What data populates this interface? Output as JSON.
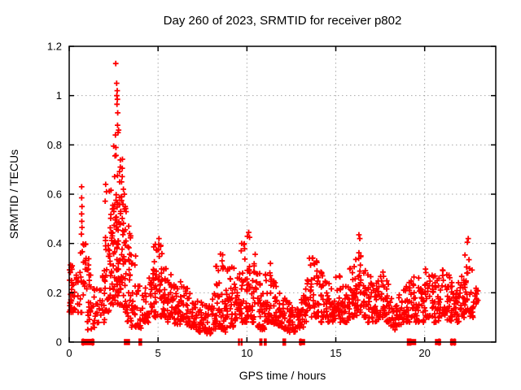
{
  "page": {
    "background": "#ffffff"
  },
  "chart_data": {
    "type": "scatter",
    "title": "Day 260 of 2023, SRMTID for receiver p802",
    "xlabel": "GPS time / hours",
    "ylabel": "SRMTID / TECUs",
    "xlim": [
      0,
      24
    ],
    "ylim": [
      0,
      1.2
    ],
    "xticks": [
      0,
      5,
      10,
      15,
      20
    ],
    "xtick_labels": [
      "0",
      "5",
      "10",
      "15",
      "20"
    ],
    "yticks": [
      0,
      0.2,
      0.4,
      0.6,
      0.8,
      1,
      1.2
    ],
    "ytick_labels": [
      "0",
      "0.2",
      "0.4",
      "0.6",
      "0.8",
      "1",
      "1.2"
    ],
    "grid": true,
    "legend_position": "none",
    "marker": "plus",
    "marker_color": "#ff0000",
    "grid_color": "#a8a8a8",
    "axis_color": "#000000",
    "series_name": "SRMTID",
    "random_seed": 7,
    "point_bins": [
      [
        0.0,
        26,
        0.12,
        0.32
      ],
      [
        0.25,
        12,
        0.13,
        0.28
      ],
      [
        0.5,
        12,
        0.12,
        0.45
      ],
      [
        0.75,
        16,
        0.13,
        0.4
      ],
      [
        1.0,
        24,
        0.05,
        0.35
      ],
      [
        1.25,
        10,
        0.05,
        0.22
      ],
      [
        1.5,
        10,
        0.06,
        0.22
      ],
      [
        1.75,
        14,
        0.08,
        0.3
      ],
      [
        2.0,
        22,
        0.12,
        0.58
      ],
      [
        2.25,
        32,
        0.15,
        0.66
      ],
      [
        2.5,
        46,
        0.15,
        0.82
      ],
      [
        2.75,
        42,
        0.15,
        0.78
      ],
      [
        3.0,
        30,
        0.12,
        0.58
      ],
      [
        3.25,
        24,
        0.08,
        0.45
      ],
      [
        3.5,
        18,
        0.06,
        0.35
      ],
      [
        3.75,
        14,
        0.06,
        0.24
      ],
      [
        4.0,
        12,
        0.05,
        0.2
      ],
      [
        4.25,
        14,
        0.08,
        0.24
      ],
      [
        4.5,
        18,
        0.1,
        0.32
      ],
      [
        4.75,
        22,
        0.1,
        0.4
      ],
      [
        5.0,
        22,
        0.1,
        0.4
      ],
      [
        5.25,
        20,
        0.1,
        0.34
      ],
      [
        5.5,
        22,
        0.08,
        0.3
      ],
      [
        5.75,
        18,
        0.07,
        0.25
      ],
      [
        6.0,
        16,
        0.07,
        0.22
      ],
      [
        6.25,
        18,
        0.08,
        0.26
      ],
      [
        6.5,
        16,
        0.07,
        0.24
      ],
      [
        6.75,
        14,
        0.06,
        0.2
      ],
      [
        7.0,
        16,
        0.05,
        0.18
      ],
      [
        7.25,
        18,
        0.04,
        0.18
      ],
      [
        7.5,
        18,
        0.04,
        0.16
      ],
      [
        7.75,
        16,
        0.03,
        0.15
      ],
      [
        8.0,
        18,
        0.05,
        0.2
      ],
      [
        8.25,
        22,
        0.06,
        0.34
      ],
      [
        8.5,
        22,
        0.05,
        0.36
      ],
      [
        8.75,
        20,
        0.04,
        0.3
      ],
      [
        9.0,
        20,
        0.05,
        0.32
      ],
      [
        9.25,
        18,
        0.08,
        0.3
      ],
      [
        9.5,
        20,
        0.08,
        0.38
      ],
      [
        9.75,
        20,
        0.08,
        0.4
      ],
      [
        10.0,
        22,
        0.1,
        0.44
      ],
      [
        10.25,
        22,
        0.08,
        0.4
      ],
      [
        10.5,
        18,
        0.06,
        0.28
      ],
      [
        10.75,
        16,
        0.05,
        0.22
      ],
      [
        11.0,
        20,
        0.08,
        0.3
      ],
      [
        11.25,
        20,
        0.08,
        0.32
      ],
      [
        11.5,
        18,
        0.07,
        0.25
      ],
      [
        11.75,
        18,
        0.06,
        0.22
      ],
      [
        12.0,
        16,
        0.05,
        0.18
      ],
      [
        12.25,
        16,
        0.04,
        0.16
      ],
      [
        12.5,
        14,
        0.04,
        0.15
      ],
      [
        12.75,
        14,
        0.05,
        0.16
      ],
      [
        13.0,
        14,
        0.06,
        0.2
      ],
      [
        13.25,
        16,
        0.08,
        0.3
      ],
      [
        13.5,
        18,
        0.1,
        0.36
      ],
      [
        13.75,
        18,
        0.1,
        0.33
      ],
      [
        14.0,
        18,
        0.08,
        0.3
      ],
      [
        14.25,
        18,
        0.1,
        0.28
      ],
      [
        14.5,
        16,
        0.08,
        0.25
      ],
      [
        14.75,
        16,
        0.08,
        0.26
      ],
      [
        15.0,
        18,
        0.1,
        0.28
      ],
      [
        15.25,
        16,
        0.08,
        0.25
      ],
      [
        15.5,
        16,
        0.08,
        0.24
      ],
      [
        15.75,
        18,
        0.1,
        0.3
      ],
      [
        16.0,
        20,
        0.1,
        0.34
      ],
      [
        16.25,
        22,
        0.12,
        0.43
      ],
      [
        16.5,
        18,
        0.1,
        0.33
      ],
      [
        16.75,
        16,
        0.08,
        0.28
      ],
      [
        17.0,
        18,
        0.08,
        0.3
      ],
      [
        17.25,
        18,
        0.08,
        0.28
      ],
      [
        17.5,
        18,
        0.1,
        0.3
      ],
      [
        17.75,
        16,
        0.08,
        0.25
      ],
      [
        18.0,
        14,
        0.06,
        0.2
      ],
      [
        18.25,
        14,
        0.05,
        0.18
      ],
      [
        18.5,
        14,
        0.06,
        0.2
      ],
      [
        18.75,
        16,
        0.08,
        0.24
      ],
      [
        19.0,
        16,
        0.08,
        0.26
      ],
      [
        19.25,
        18,
        0.1,
        0.3
      ],
      [
        19.5,
        16,
        0.08,
        0.28
      ],
      [
        19.75,
        16,
        0.08,
        0.25
      ],
      [
        20.0,
        18,
        0.1,
        0.3
      ],
      [
        20.25,
        18,
        0.1,
        0.3
      ],
      [
        20.5,
        16,
        0.08,
        0.28
      ],
      [
        20.75,
        16,
        0.08,
        0.26
      ],
      [
        21.0,
        18,
        0.1,
        0.3
      ],
      [
        21.25,
        18,
        0.08,
        0.28
      ],
      [
        21.5,
        16,
        0.1,
        0.26
      ],
      [
        21.75,
        16,
        0.08,
        0.25
      ],
      [
        22.0,
        18,
        0.1,
        0.28
      ],
      [
        22.25,
        22,
        0.12,
        0.4
      ],
      [
        22.5,
        18,
        0.1,
        0.3
      ],
      [
        22.75,
        12,
        0.1,
        0.22
      ]
    ],
    "outlier_points": [
      [
        0.7,
        0.63
      ],
      [
        0.7,
        0.585
      ],
      [
        0.72,
        0.55
      ],
      [
        0.7,
        0.52
      ],
      [
        0.71,
        0.49
      ],
      [
        0.72,
        0.465
      ],
      [
        2.05,
        0.64
      ],
      [
        2.1,
        0.61
      ],
      [
        2.62,
        1.13
      ],
      [
        2.67,
        1.05
      ],
      [
        2.7,
        1.02
      ],
      [
        2.68,
        1.0
      ],
      [
        2.71,
        0.985
      ],
      [
        2.69,
        0.965
      ],
      [
        2.73,
        0.93
      ],
      [
        2.72,
        0.88
      ],
      [
        2.78,
        0.86
      ],
      [
        2.75,
        0.85
      ],
      [
        2.6,
        0.84
      ],
      [
        3.05,
        0.62
      ],
      [
        3.1,
        0.6
      ],
      [
        3.15,
        0.55
      ],
      [
        3.35,
        0.47
      ],
      [
        3.4,
        0.44
      ],
      [
        5.05,
        0.42
      ],
      [
        9.7,
        0.4
      ],
      [
        10.1,
        0.445
      ],
      [
        10.15,
        0.425
      ],
      [
        16.3,
        0.435
      ],
      [
        16.35,
        0.42
      ],
      [
        22.45,
        0.42
      ],
      [
        22.4,
        0.405
      ]
    ],
    "zero_axis_markers": {
      "bars": [
        0.78,
        1.32,
        3.95,
        4.05,
        9.55,
        9.7,
        10.75,
        10.82,
        11.0,
        11.06,
        12.05,
        12.15,
        13.02,
        19.05,
        19.12,
        19.2,
        20.82,
        21.52,
        21.68
      ],
      "squares": [
        0.85,
        0.92,
        1.0,
        1.08,
        1.16,
        1.25,
        3.25,
        13.1,
        19.35,
        20.75,
        21.6
      ]
    }
  }
}
